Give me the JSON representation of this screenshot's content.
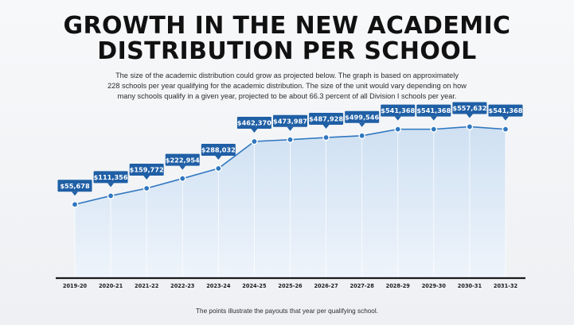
{
  "header": {
    "title_line1": "GROWTH IN THE NEW ACADEMIC",
    "title_line2": "DISTRIBUTION PER SCHOOL"
  },
  "description": {
    "line1": "The size of the academic distribution could grow as projected below. The graph is based on approximately",
    "line2": "228 schools per year qualifying for the academic distribution. The size of the unit would vary depending on how",
    "line3": "many schools qualify in a given year, projected to be about 66.3 percent of all Division I schools per year."
  },
  "footnote": "The points illustrate the payouts that year per qualifying school.",
  "colors": {
    "line": "#2f77c0",
    "label_bg": "#1f5fa5",
    "area_top": "#cfe0f2",
    "area_bottom": "#eef4fb"
  },
  "chart_data": {
    "type": "area",
    "categories": [
      "2019-20",
      "2020-21",
      "2021-22",
      "2022-23",
      "2023-24",
      "2024-25",
      "2025-26",
      "2026-27",
      "2027-28",
      "2028-29",
      "2029-30",
      "2030-31",
      "2031-32"
    ],
    "values": [
      55678,
      111356,
      159772,
      222954,
      288032,
      462370,
      473987,
      487928,
      499546,
      541368,
      541368,
      557632,
      541368
    ],
    "value_labels": [
      "$55,678",
      "$111,356",
      "$159,772",
      "$222,954",
      "$288,032",
      "$462,370",
      "$473,987",
      "$487,928",
      "$499,546",
      "$541,368",
      "$541,368",
      "$557,632",
      "$541,368"
    ],
    "ylim": [
      -420000,
      760000
    ],
    "grid": "vertical"
  }
}
